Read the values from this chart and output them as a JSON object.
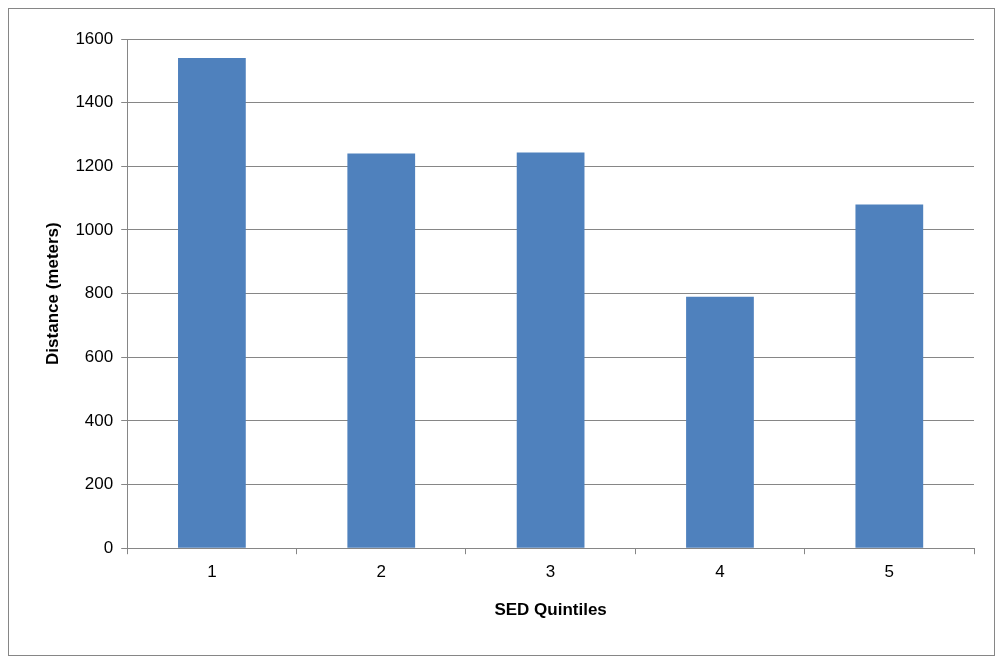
{
  "chart_data": {
    "type": "bar",
    "xlabel": "SED Quintiles",
    "ylabel": "Distance (meters)",
    "categories": [
      "1",
      "2",
      "3",
      "4",
      "5"
    ],
    "values": [
      1540,
      1240,
      1243,
      790,
      1080
    ],
    "color": "#4f81bd",
    "ylim": [
      0,
      1600
    ],
    "yticks": [
      0,
      200,
      400,
      600,
      800,
      1000,
      1200,
      1400,
      1600
    ],
    "grid": "y",
    "legend": false
  }
}
